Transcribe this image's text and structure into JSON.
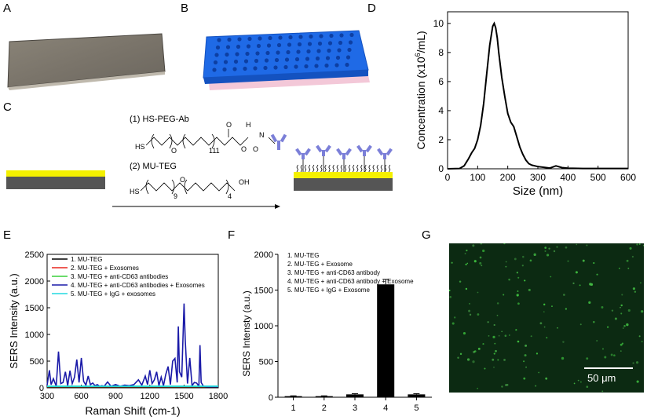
{
  "panels": {
    "a": "A",
    "b": "B",
    "c": "C",
    "d": "D",
    "e": "E",
    "f": "F",
    "g": "G"
  },
  "scheme": {
    "step1": "(1) HS-PEG-Ab",
    "step2": "(2) MU-TEG",
    "hs": "HS",
    "n111": "111",
    "n9": "9",
    "n4": "4",
    "oh": "OH",
    "o": "O",
    "nh": "N",
    "h": "H"
  },
  "colors": {
    "gold": "#f4f000",
    "substrate": "#555555",
    "antibody": "#7b7fd8",
    "plate": "#1e6be8"
  },
  "chart_data": [
    {
      "panel": "D",
      "type": "line",
      "xlabel": "Size (nm)",
      "ylabel": "Concentration (x10",
      "ylabel_exp": "6",
      "ylabel_tail": "/mL)",
      "xlim": [
        0,
        600
      ],
      "ylim": [
        0,
        10.8
      ],
      "xticks": [
        "0",
        "100",
        "200",
        "300",
        "400",
        "500",
        "600"
      ],
      "yticks": [
        "0",
        "2",
        "4",
        "6",
        "8",
        "10"
      ],
      "x": [
        0,
        40,
        55,
        70,
        80,
        90,
        100,
        110,
        120,
        130,
        140,
        150,
        155,
        160,
        165,
        170,
        180,
        190,
        200,
        210,
        220,
        230,
        240,
        250,
        260,
        270,
        280,
        300,
        320,
        340,
        360,
        380,
        400,
        450,
        500,
        550,
        600
      ],
      "y": [
        0,
        0.02,
        0.2,
        0.7,
        1.1,
        1.4,
        2.0,
        3.0,
        4.5,
        6.5,
        8.5,
        9.8,
        10.0,
        9.7,
        9.0,
        8.0,
        6.3,
        5.0,
        3.8,
        3.2,
        2.9,
        2.2,
        1.5,
        1.0,
        0.6,
        0.35,
        0.25,
        0.15,
        0.1,
        0.05,
        0.2,
        0.08,
        0.04,
        0.02,
        0.02,
        0.02,
        0.02
      ],
      "color": "#000000"
    },
    {
      "panel": "E",
      "type": "line",
      "xlabel": "Raman Shift (cm-1)",
      "ylabel": "SERS Intensity (a.u.)",
      "xlim": [
        300,
        1800
      ],
      "ylim": [
        0,
        2500
      ],
      "xticks": [
        "300",
        "600",
        "900",
        "1200",
        "1500",
        "1800"
      ],
      "yticks": [
        "0",
        "500",
        "1000",
        "1500",
        "2000",
        "2500"
      ],
      "legend_position": "top-left",
      "series": [
        {
          "name": "1. MU-TEG",
          "color": "#000000",
          "x": [
            300,
            1800
          ],
          "y": [
            20,
            20
          ]
        },
        {
          "name": "2. MU-TEG + Exosomes",
          "color": "#e8261f",
          "x": [
            300,
            1800
          ],
          "y": [
            22,
            22
          ]
        },
        {
          "name": "3. MU-TEG + anti-CD63 antibodies",
          "color": "#39d13a",
          "x": [
            300,
            1800
          ],
          "y": [
            26,
            26
          ]
        },
        {
          "name": "4. MU-TEG + anti-CD63 antibodies + Exosomes",
          "color": "#1a1aa8",
          "x": [
            300,
            320,
            335,
            355,
            380,
            400,
            420,
            440,
            460,
            480,
            500,
            520,
            540,
            560,
            580,
            600,
            620,
            640,
            660,
            680,
            700,
            720,
            740,
            760,
            780,
            800,
            830,
            860,
            900,
            940,
            980,
            1020,
            1060,
            1100,
            1130,
            1160,
            1180,
            1200,
            1220,
            1240,
            1260,
            1280,
            1300,
            1320,
            1340,
            1360,
            1380,
            1400,
            1420,
            1440,
            1450,
            1460,
            1480,
            1500,
            1510,
            1530,
            1550,
            1570,
            1590,
            1610,
            1630,
            1640,
            1650,
            1670,
            1700,
            1800
          ],
          "y": [
            50,
            330,
            60,
            170,
            30,
            680,
            80,
            100,
            300,
            40,
            320,
            80,
            200,
            530,
            100,
            560,
            120,
            50,
            220,
            60,
            90,
            40,
            60,
            30,
            40,
            30,
            110,
            30,
            60,
            30,
            50,
            40,
            60,
            150,
            50,
            220,
            60,
            330,
            80,
            150,
            300,
            40,
            200,
            40,
            250,
            400,
            60,
            500,
            550,
            100,
            1150,
            300,
            200,
            1580,
            900,
            80,
            560,
            40,
            100,
            90,
            30,
            800,
            100,
            30,
            20,
            20
          ]
        },
        {
          "name": "5. MU-TEG + IgG  + exosomes",
          "color": "#22d8e0",
          "x": [
            300,
            1800
          ],
          "y": [
            30,
            30
          ]
        }
      ]
    },
    {
      "panel": "F",
      "type": "bar",
      "xlabel": "",
      "ylabel": "SERS Intensty (a.u.)",
      "ylim": [
        0,
        2000
      ],
      "yticks": [
        "0",
        "500",
        "1000",
        "1500",
        "2000"
      ],
      "categories": [
        "1",
        "2",
        "3",
        "4",
        "5"
      ],
      "values": [
        15,
        15,
        40,
        1580,
        40
      ],
      "errors": [
        5,
        5,
        10,
        70,
        10
      ],
      "legend": [
        "1. MU-TEG",
        "2. MU-TEG + Exosome",
        "3. MU-TEG + anti-CD63 antibody",
        "4. MU-TEG + anti-CD63 antibody + Exosome",
        "5. MU-TEG + IgG + Exosome"
      ],
      "color": "#000000"
    }
  ],
  "micrograph": {
    "scale_label": "50 μm",
    "background": "#0c2a12"
  }
}
